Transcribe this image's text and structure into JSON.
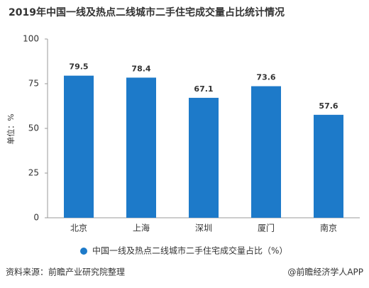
{
  "chart_data": {
    "type": "bar",
    "title": "2019年中国一线及热点二线城市二手住宅成交量占比统计情况",
    "y_label": "单位：%",
    "categories": [
      "北京",
      "上海",
      "深圳",
      "厦门",
      "南京"
    ],
    "series": [
      {
        "name": "中国一线及热点二线城市二手住宅成交量占比（%）",
        "color": "#1d7ac9",
        "values": [
          79.5,
          78.4,
          67.1,
          73.6,
          57.6
        ]
      }
    ],
    "ylim": [
      0,
      100
    ],
    "yticks": [
      0,
      25,
      50,
      75,
      100
    ],
    "grid": false,
    "legend": "bottom",
    "source": "资料来源：前瞻产业研究院整理",
    "credit": "@前瞻经济学人APP"
  }
}
